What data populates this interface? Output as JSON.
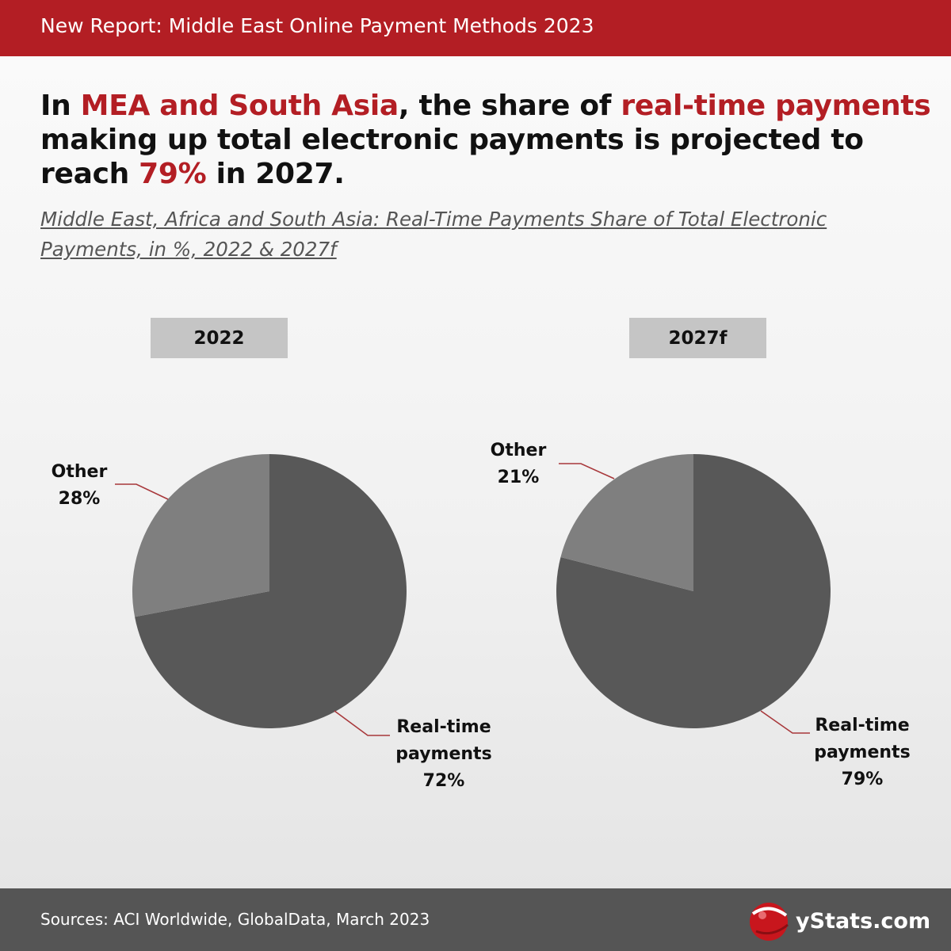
{
  "header": {
    "title": "New Report: Middle East Online Payment Methods 2023"
  },
  "headline": {
    "part1": "In ",
    "highlight1": "MEA and South Asia",
    "part2": ", the share of ",
    "highlight2": "real-time payments",
    "part3": " making up total electronic payments is projected to reach ",
    "highlight3": "79%",
    "part4": " in 2027."
  },
  "subtitle": "Middle East, Africa and South Asia: Real-Time Payments Share of Total Electronic Payments, in %, 2022 & 2027f",
  "chart_data": [
    {
      "type": "pie",
      "title": "2022",
      "slices": [
        {
          "name": "Real-time",
          "name_line2": "payments",
          "value": 72,
          "label": "72%",
          "color": "#585858"
        },
        {
          "name": "Other",
          "value": 28,
          "label": "28%",
          "color": "#7f7f7f"
        }
      ],
      "start": "12 o'clock",
      "direction": "clockwise"
    },
    {
      "type": "pie",
      "title": "2027f",
      "slices": [
        {
          "name": "Real-time",
          "name_line2": "payments",
          "value": 79,
          "label": "79%",
          "color": "#585858"
        },
        {
          "name": "Other",
          "value": 21,
          "label": "21%",
          "color": "#7f7f7f"
        }
      ],
      "start": "12 o'clock",
      "direction": "clockwise"
    }
  ],
  "leader_line_color": "#a8383b",
  "accent_color": "#b31e24",
  "footer": {
    "sources": "Sources: ACI Worldwide, GlobalData, March 2023",
    "logo_text": "yStats.com"
  }
}
